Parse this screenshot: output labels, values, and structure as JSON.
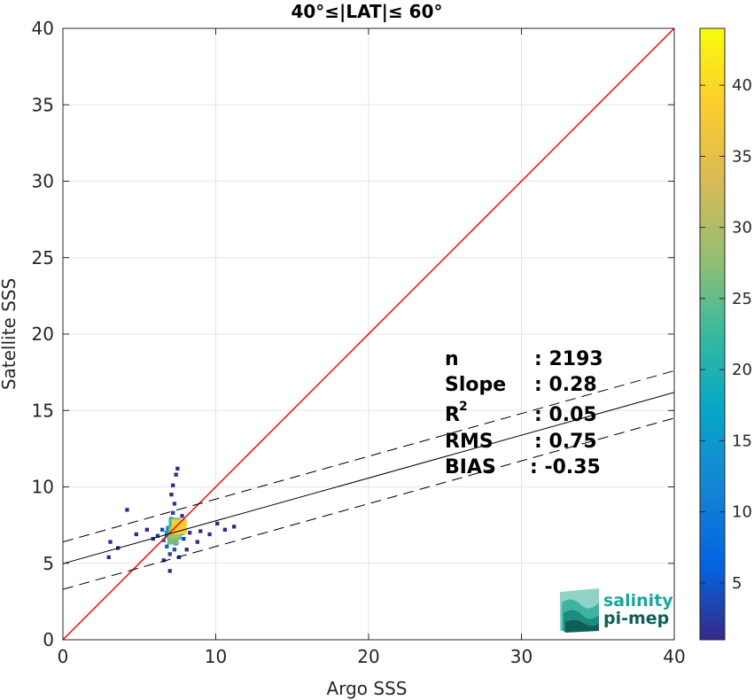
{
  "chart_data": {
    "type": "scatter",
    "title": "40°≤|LAT|≤ 60°",
    "xlabel": "Argo SSS",
    "ylabel": "Satellite SSS",
    "xlim": [
      0,
      40
    ],
    "ylim": [
      0,
      40
    ],
    "xticks": [
      0,
      10,
      20,
      30,
      40
    ],
    "yticks": [
      0,
      5,
      10,
      15,
      20,
      25,
      30,
      35,
      40
    ],
    "grid": true,
    "colorbar": {
      "range": [
        1,
        44
      ],
      "ticks": [
        5,
        10,
        15,
        20,
        25,
        30,
        35,
        40
      ],
      "colormap": "parula"
    },
    "reference_line": {
      "name": "1:1",
      "slope": 1,
      "intercept": 0,
      "color": "#ff0000"
    },
    "fit_line": {
      "slope": 0.28,
      "intercept": 4.98,
      "color": "#000000"
    },
    "fit_bounds": {
      "upper_intercept": 6.4,
      "lower_intercept": 3.3,
      "style": "dashed"
    },
    "density_bins": [
      {
        "x": 7.3,
        "y": 7.0,
        "count": 30
      },
      {
        "x": 7.3,
        "y": 7.6,
        "count": 22
      },
      {
        "x": 7.6,
        "y": 7.4,
        "count": 38
      },
      {
        "x": 7.2,
        "y": 6.6,
        "count": 26
      },
      {
        "x": 6.9,
        "y": 6.9,
        "count": 16
      },
      {
        "x": 7.5,
        "y": 6.8,
        "count": 20
      },
      {
        "x": 7.0,
        "y": 7.2,
        "count": 12
      },
      {
        "x": 7.4,
        "y": 6.3,
        "count": 10
      },
      {
        "x": 6.6,
        "y": 6.5,
        "count": 9
      },
      {
        "x": 7.1,
        "y": 7.9,
        "count": 8
      },
      {
        "x": 7.7,
        "y": 7.1,
        "count": 14
      },
      {
        "x": 6.8,
        "y": 6.1,
        "count": 6
      },
      {
        "x": 7.3,
        "y": 5.9,
        "count": 5
      },
      {
        "x": 7.9,
        "y": 6.6,
        "count": 4
      },
      {
        "x": 6.5,
        "y": 7.2,
        "count": 4
      },
      {
        "x": 7.2,
        "y": 8.3,
        "count": 3
      },
      {
        "x": 7.0,
        "y": 5.6,
        "count": 3
      },
      {
        "x": 7.6,
        "y": 5.4,
        "count": 2
      },
      {
        "x": 8.3,
        "y": 7.0,
        "count": 2
      },
      {
        "x": 6.2,
        "y": 6.8,
        "count": 2
      },
      {
        "x": 7.3,
        "y": 8.9,
        "count": 2
      },
      {
        "x": 7.1,
        "y": 9.5,
        "count": 1
      },
      {
        "x": 7.5,
        "y": 11.2,
        "count": 1
      },
      {
        "x": 7.4,
        "y": 10.8,
        "count": 1
      },
      {
        "x": 7.2,
        "y": 10.1,
        "count": 1
      },
      {
        "x": 4.2,
        "y": 8.5,
        "count": 1
      },
      {
        "x": 3.1,
        "y": 6.4,
        "count": 1
      },
      {
        "x": 3.0,
        "y": 5.4,
        "count": 1
      },
      {
        "x": 3.6,
        "y": 6.0,
        "count": 1
      },
      {
        "x": 4.8,
        "y": 6.9,
        "count": 1
      },
      {
        "x": 5.5,
        "y": 7.2,
        "count": 1
      },
      {
        "x": 5.9,
        "y": 6.6,
        "count": 2
      },
      {
        "x": 9.0,
        "y": 7.1,
        "count": 1
      },
      {
        "x": 8.8,
        "y": 6.4,
        "count": 1
      },
      {
        "x": 10.6,
        "y": 7.2,
        "count": 1
      },
      {
        "x": 11.2,
        "y": 7.4,
        "count": 1
      },
      {
        "x": 10.1,
        "y": 7.6,
        "count": 1
      },
      {
        "x": 9.6,
        "y": 6.9,
        "count": 1
      },
      {
        "x": 7.0,
        "y": 4.5,
        "count": 1
      },
      {
        "x": 6.6,
        "y": 5.2,
        "count": 1
      },
      {
        "x": 8.1,
        "y": 5.9,
        "count": 1
      },
      {
        "x": 7.8,
        "y": 8.1,
        "count": 2
      }
    ],
    "stats": [
      {
        "label": "n",
        "value": ": 2193"
      },
      {
        "label": "Slope",
        "value": ": 0.28"
      },
      {
        "label": "R",
        "sup": "2",
        "value": ": 0.05"
      },
      {
        "label": "RMS",
        "value": ": 0.75"
      },
      {
        "label": "BIAS",
        "value": ": -0.35"
      }
    ]
  },
  "logo": {
    "line1": "salinity",
    "line2": "pi-mep",
    "color1": "#1aa69a",
    "color2": "#0f5e57"
  }
}
